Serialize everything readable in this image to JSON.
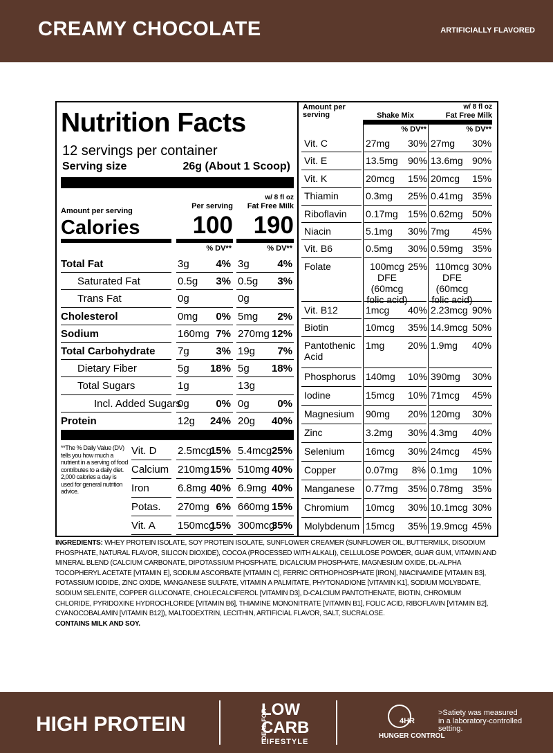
{
  "header": {
    "title": "CREAMY CHOCOLATE",
    "subtitle": "ARTIFICIALLY FLAVORED"
  },
  "label": {
    "title": "Nutrition Facts",
    "servings": "12 servings per container",
    "serving_size_label": "Serving size",
    "serving_size_value": "26g (About 1 Scoop)",
    "amount_per_serving": "Amount per serving",
    "per_serving": "Per serving",
    "milk_header_1": "w/ 8 fl oz",
    "milk_header_2": "Fat Free Milk",
    "calories_label": "Calories",
    "calories": "100",
    "calories_milk": "190",
    "dv_header": "% DV**",
    "nutrients": [
      {
        "name": "Total Fat",
        "amount": "3g",
        "dv": "4%",
        "milk_amount": "3g",
        "milk_dv": "4%"
      },
      {
        "name": "Saturated Fat",
        "amount": "0.5g",
        "dv": "3%",
        "milk_amount": "0.5g",
        "milk_dv": "3%"
      },
      {
        "name": "Trans Fat",
        "amount": "0g",
        "dv": null,
        "milk_amount": "0g",
        "milk_dv": null
      },
      {
        "name": "Cholesterol",
        "amount": "0mg",
        "dv": "0%",
        "milk_amount": "5mg",
        "milk_dv": "2%"
      },
      {
        "name": "Sodium",
        "amount": "160mg",
        "dv": "7%",
        "milk_amount": "270mg",
        "milk_dv": "12%"
      },
      {
        "name": "Total Carbohydrate",
        "amount": "7g",
        "dv": "3%",
        "milk_amount": "19g",
        "milk_dv": "7%"
      },
      {
        "name": "Dietary Fiber",
        "amount": "5g",
        "dv": "18%",
        "milk_amount": "5g",
        "milk_dv": "18%"
      },
      {
        "name": "Total Sugars",
        "amount": "1g",
        "dv": null,
        "milk_amount": "13g",
        "milk_dv": null
      },
      {
        "name": "Incl. Added Sugars",
        "amount": "0g",
        "dv": "0%",
        "milk_amount": "0g",
        "milk_dv": "0%"
      },
      {
        "name": "Protein",
        "amount": "12g",
        "dv": "24%",
        "milk_amount": "20g",
        "milk_dv": "40%"
      }
    ],
    "footnote": "**The % Daily Value (DV) tells you how much a nutrient in a serving of food contributes to a daily diet. 2,000 calories a day is used for general nutrition advice.",
    "minerals": [
      {
        "name": "Vit. D",
        "amount": "2.5mcg",
        "dv": "15%",
        "milk_amount": "5.4mcg",
        "milk_dv": "25%"
      },
      {
        "name": "Calcium",
        "amount": "210mg",
        "dv": "15%",
        "milk_amount": "510mg",
        "milk_dv": "40%"
      },
      {
        "name": "Iron",
        "amount": "6.8mg",
        "dv": "40%",
        "milk_amount": "6.9mg",
        "milk_dv": "40%"
      },
      {
        "name": "Potas.",
        "amount": "270mg",
        "dv": "6%",
        "milk_amount": "660mg",
        "milk_dv": "15%"
      },
      {
        "name": "Vit. A",
        "amount": "150mcg",
        "dv": "15%",
        "milk_amount": "300mcg",
        "milk_dv": "35%"
      }
    ],
    "right_amount_per_serving": "Amount per serving",
    "shake_mix": "Shake Mix",
    "vitamins": [
      {
        "name": "Vit. C",
        "amount": "27mg",
        "dv": "30%",
        "milk_amount": "27mg",
        "milk_dv": "30%"
      },
      {
        "name": "Vit. E",
        "amount": "13.5mg",
        "dv": "90%",
        "milk_amount": "13.6mg",
        "milk_dv": "90%"
      },
      {
        "name": "Vit. K",
        "amount": "20mcg",
        "dv": "15%",
        "milk_amount": "20mcg",
        "milk_dv": "15%"
      },
      {
        "name": "Thiamin",
        "amount": "0.3mg",
        "dv": "25%",
        "milk_amount": "0.41mg",
        "milk_dv": "35%"
      },
      {
        "name": "Riboflavin",
        "amount": "0.17mg",
        "dv": "15%",
        "milk_amount": "0.62mg",
        "milk_dv": "50%"
      },
      {
        "name": "Niacin",
        "amount": "5.1mg",
        "dv": "30%",
        "milk_amount": "7mg",
        "milk_dv": "45%"
      },
      {
        "name": "Vit. B6",
        "amount": "0.5mg",
        "dv": "30%",
        "milk_amount": "0.59mg",
        "milk_dv": "35%"
      },
      {
        "name": "Folate",
        "amount": "100mcg DFE (60mcg folic acid)",
        "dv": "25%",
        "milk_amount": "110mcg DFE (60mcg folic acid)",
        "milk_dv": "30%"
      },
      {
        "name": "Vit. B12",
        "amount": "1mcg",
        "dv": "40%",
        "milk_amount": "2.23mcg",
        "milk_dv": "90%"
      },
      {
        "name": "Biotin",
        "amount": "10mcg",
        "dv": "35%",
        "milk_amount": "14.9mcg",
        "milk_dv": "50%"
      },
      {
        "name": "Pantothenic Acid",
        "amount": "1mg",
        "dv": "20%",
        "milk_amount": "1.9mg",
        "milk_dv": "40%"
      },
      {
        "name": "Phosphorus",
        "amount": "140mg",
        "dv": "10%",
        "milk_amount": "390mg",
        "milk_dv": "30%"
      },
      {
        "name": "Iodine",
        "amount": "15mcg",
        "dv": "10%",
        "milk_amount": "71mcg",
        "milk_dv": "45%"
      },
      {
        "name": "Magnesium",
        "amount": "90mg",
        "dv": "20%",
        "milk_amount": "120mg",
        "milk_dv": "30%"
      },
      {
        "name": "Zinc",
        "amount": "3.2mg",
        "dv": "30%",
        "milk_amount": "4.3mg",
        "milk_dv": "40%"
      },
      {
        "name": "Selenium",
        "amount": "16mcg",
        "dv": "30%",
        "milk_amount": "24mcg",
        "milk_dv": "45%"
      },
      {
        "name": "Copper",
        "amount": "0.07mg",
        "dv": "8%",
        "milk_amount": "0.1mg",
        "milk_dv": "10%"
      },
      {
        "name": "Manganese",
        "amount": "0.77mg",
        "dv": "35%",
        "milk_amount": "0.78mg",
        "milk_dv": "35%"
      },
      {
        "name": "Chromium",
        "amount": "10mcg",
        "dv": "30%",
        "milk_amount": "10.1mcg",
        "milk_dv": "30%"
      },
      {
        "name": "Molybdenum",
        "amount": "15mcg",
        "dv": "35%",
        "milk_amount": "19.9mcg",
        "milk_dv": "45%"
      }
    ]
  },
  "ingredients": {
    "label": "INGREDIENTS:",
    "text": "WHEY PROTEIN ISOLATE, SOY PROTEIN ISOLATE, SUNFLOWER CREAMER (SUNFLOWER OIL, BUTTERMILK, DISODIUM PHOSPHATE, NATURAL FLAVOR, SILICON DIOXIDE), COCOA (PROCESSED WITH ALKALI), CELLULOSE POWDER, GUAR GUM, VITAMIN AND MINERAL BLEND (CALCIUM CARBONATE, DIPOTASSIUM PHOSPHATE, DICALCIUM PHOSPHATE, MAGNESIUM OXIDE, DL-ALPHA TOCOPHERYL ACETATE [VITAMIN E], SODIUM ASCORBATE [VITAMIN C], FERRIC ORTHOPHOSPHATE [IRON], NIACINAMIDE [VITAMIN B3], POTASSIUM IODIDE, ZINC OXIDE, MANGANESE SULFATE, VITAMIN A PALMITATE, PHYTONADIONE [VITAMIN K1], SODIUM MOLYBDATE, SODIUM SELENITE, COPPER GLUCONATE, CHOLECALCIFEROL [VITAMIN D3], D-CALCIUM PANTOTHENATE, BIOTIN, CHROMIUM CHLORIDE, PYRIDOXINE HYDROCHLORIDE [VITAMIN B6], THIAMINE MONONITRATE [VITAMIN B1], FOLIC ACID, RIBOFLAVIN [VITAMIN B2], CYANOCOBALAMIN [VITAMIN B12]), MALTODEXTRIN, LECITHIN, ARTIFICIAL FLAVOR, SALT, SUCRALOSE.",
    "allergens": "CONTAINS MILK AND SOY."
  },
  "footer": {
    "high_protein": "HIGH PROTEIN",
    "ideal_for": "IDEAL FOR",
    "low": "LOW",
    "carb": "CARB",
    "lifestyle": "LIFESTYLE",
    "hours": "4HR",
    "hunger_control": "HUNGER CONTROL",
    "satiety_note": ">Satiety was measured in a laboratory-controlled setting."
  }
}
